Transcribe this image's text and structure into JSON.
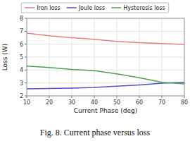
{
  "chart_data": {
    "type": "line",
    "title": "Fig. 8. Current phase versus loss",
    "xlabel": "Current Phase (deg)",
    "ylabel": "Loss (W)",
    "x": [
      10,
      20,
      30,
      40,
      50,
      60,
      70,
      80
    ],
    "series": [
      {
        "name": "Iron loss",
        "color": "#e08080",
        "values": [
          6.85,
          6.65,
          6.5,
          6.38,
          6.22,
          6.12,
          6.05,
          5.98
        ]
      },
      {
        "name": "Joule loss",
        "color": "#5050c8",
        "values": [
          2.55,
          2.57,
          2.6,
          2.65,
          2.75,
          2.85,
          2.98,
          3.05
        ]
      },
      {
        "name": "Hysteresis loss",
        "color": "#50a050",
        "values": [
          4.3,
          4.2,
          4.05,
          3.95,
          3.7,
          3.4,
          3.05,
          2.93
        ]
      }
    ],
    "xlim": [
      10,
      80
    ],
    "ylim": [
      2,
      8
    ],
    "xticks": [
      10,
      20,
      30,
      40,
      50,
      60,
      70,
      80
    ],
    "yticks": [
      2,
      3,
      4,
      5,
      6,
      7,
      8
    ],
    "grid": true,
    "legend": "top"
  }
}
